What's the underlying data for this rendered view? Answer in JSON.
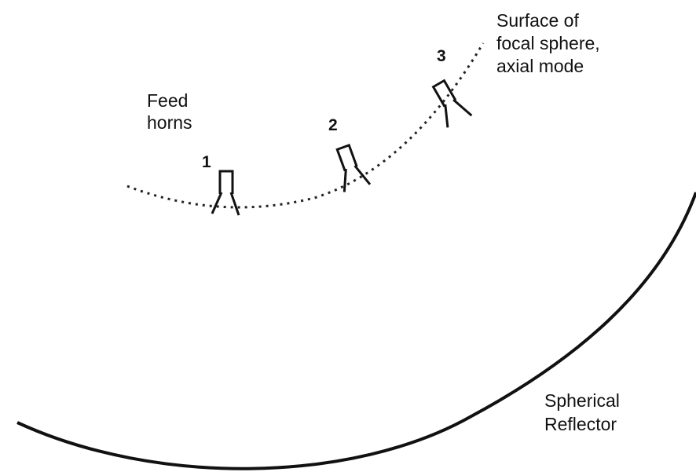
{
  "labels": {
    "surface": [
      "Surface of",
      "focal sphere,",
      "axial mode"
    ],
    "feed": [
      "Feed",
      "horns"
    ],
    "reflector": [
      "Spherical",
      "Reflector"
    ]
  },
  "horns": [
    {
      "label": "1"
    },
    {
      "label": "2"
    },
    {
      "label": "3"
    }
  ]
}
